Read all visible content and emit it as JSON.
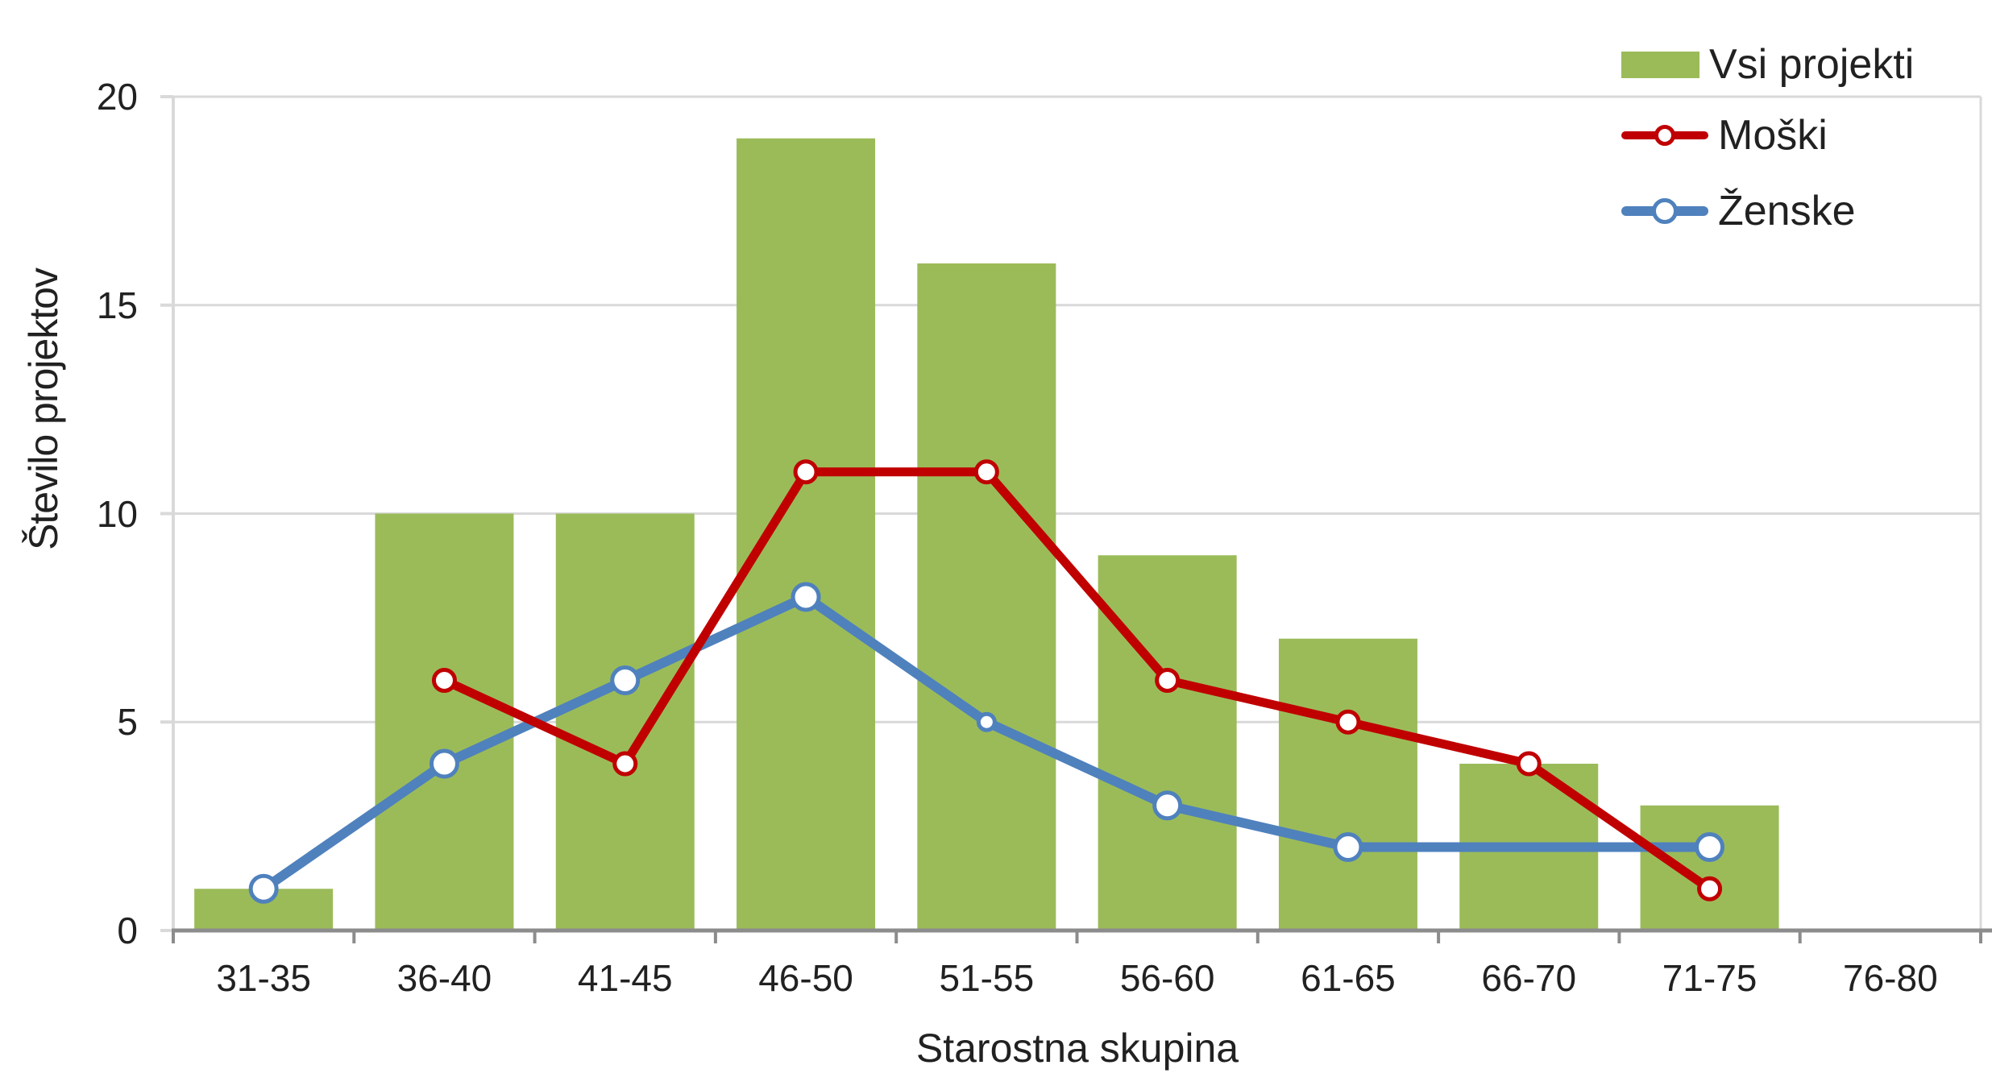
{
  "chart_data": {
    "type": "combo",
    "title": "",
    "xlabel": "Starostna skupina",
    "ylabel": "Število projektov",
    "categories": [
      "31-35",
      "36-40",
      "41-45",
      "46-50",
      "51-55",
      "56-60",
      "61-65",
      "66-70",
      "71-75",
      "76-80"
    ],
    "series": [
      {
        "name": "Vsi projekti",
        "chart": "bar",
        "color": "#9BBB59",
        "values": [
          1,
          10,
          10,
          19,
          16,
          9,
          7,
          4,
          3,
          0
        ]
      },
      {
        "name": "Moški",
        "chart": "line",
        "color": "#C00000",
        "line_width": 11,
        "marker_radius": 13,
        "marker_fill": "#FFFFFF",
        "values": [
          null,
          6,
          4,
          11,
          11,
          6,
          5,
          4,
          1,
          null
        ]
      },
      {
        "name": "Ženske",
        "chart": "line",
        "color": "#4F81BD",
        "line_width": 12,
        "marker_radius": 16,
        "marker_fill": "#FFFFFF",
        "marker_radius_overrides": {
          "4": 10,
          "7": 0
        },
        "values": [
          1,
          4,
          6,
          8,
          5,
          3,
          2,
          2,
          2,
          null
        ]
      }
    ],
    "ylim": [
      0,
      20
    ],
    "yticks": [
      0,
      5,
      10,
      15,
      20
    ],
    "grid": true,
    "legend_position": "top-right",
    "colors": {
      "gridline": "#D9D9D9",
      "axis_line": "#8C8C8C",
      "text": "#212121",
      "plot_border": "#D9D9D9",
      "background": "#FFFFFF"
    }
  }
}
